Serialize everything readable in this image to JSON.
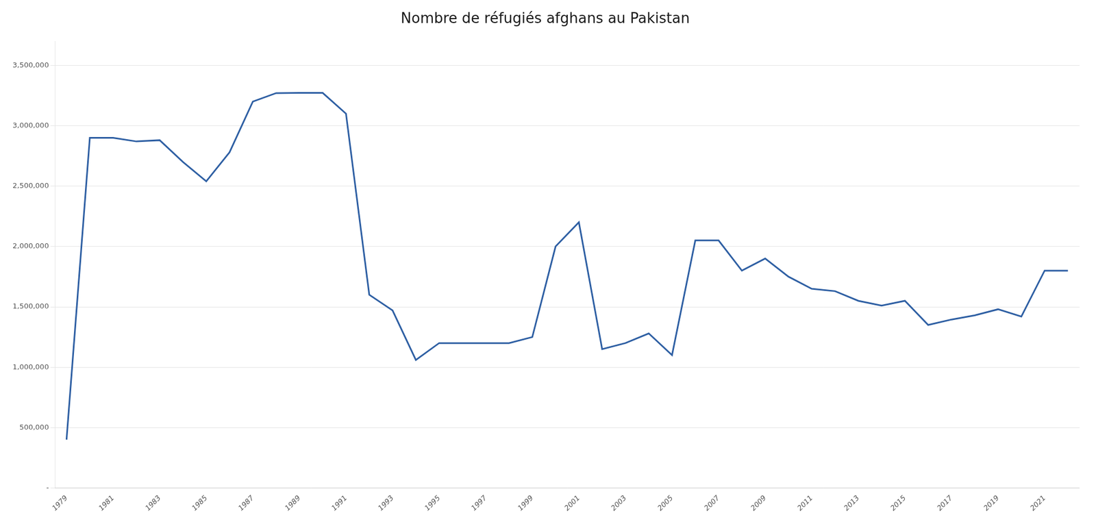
{
  "chart_data": {
    "type": "line",
    "title": "Nombre de réfugiés afghans au Pakistan",
    "x": [
      1979,
      1980,
      1981,
      1982,
      1983,
      1984,
      1985,
      1986,
      1987,
      1988,
      1989,
      1990,
      1991,
      1992,
      1993,
      1994,
      1995,
      1996,
      1997,
      1998,
      1999,
      2000,
      2001,
      2002,
      2003,
      2004,
      2005,
      2006,
      2007,
      2008,
      2009,
      2010,
      2011,
      2012,
      2013,
      2014,
      2015,
      2016,
      2017,
      2018,
      2019,
      2020,
      2021,
      2022
    ],
    "values": [
      400000,
      2900000,
      2900000,
      2870000,
      2880000,
      2700000,
      2540000,
      2780000,
      3200000,
      3270000,
      3272000,
      3272000,
      3100000,
      1600000,
      1470000,
      1060000,
      1200000,
      1200000,
      1200000,
      1200000,
      1250000,
      2000000,
      2200000,
      1150000,
      1200000,
      1280000,
      1100000,
      2050000,
      2050000,
      1800000,
      1900000,
      1750000,
      1650000,
      1630000,
      1550000,
      1510000,
      1550000,
      1350000,
      1395000,
      1430000,
      1480000,
      1420000,
      1800000,
      1800000
    ],
    "color": "#2E5FA3",
    "xlim": [
      1978.5,
      2022.5
    ],
    "xticks": [
      1979,
      1981,
      1983,
      1985,
      1987,
      1989,
      1991,
      1993,
      1995,
      1997,
      1999,
      2001,
      2003,
      2005,
      2007,
      2009,
      2011,
      2013,
      2015,
      2017,
      2019,
      2021
    ],
    "ylim": [
      0,
      3700000
    ],
    "yticks": [
      {
        "value": 0,
        "label": "-"
      },
      {
        "value": 500000,
        "label": "500,000"
      },
      {
        "value": 1000000,
        "label": "1,000,000"
      },
      {
        "value": 1500000,
        "label": "1,500,000"
      },
      {
        "value": 2000000,
        "label": "2,000,000"
      },
      {
        "value": 2500000,
        "label": "2,500,000"
      },
      {
        "value": 3000000,
        "label": "3,000,000"
      },
      {
        "value": 3500000,
        "label": "3,500,000"
      }
    ],
    "grid": "y"
  }
}
